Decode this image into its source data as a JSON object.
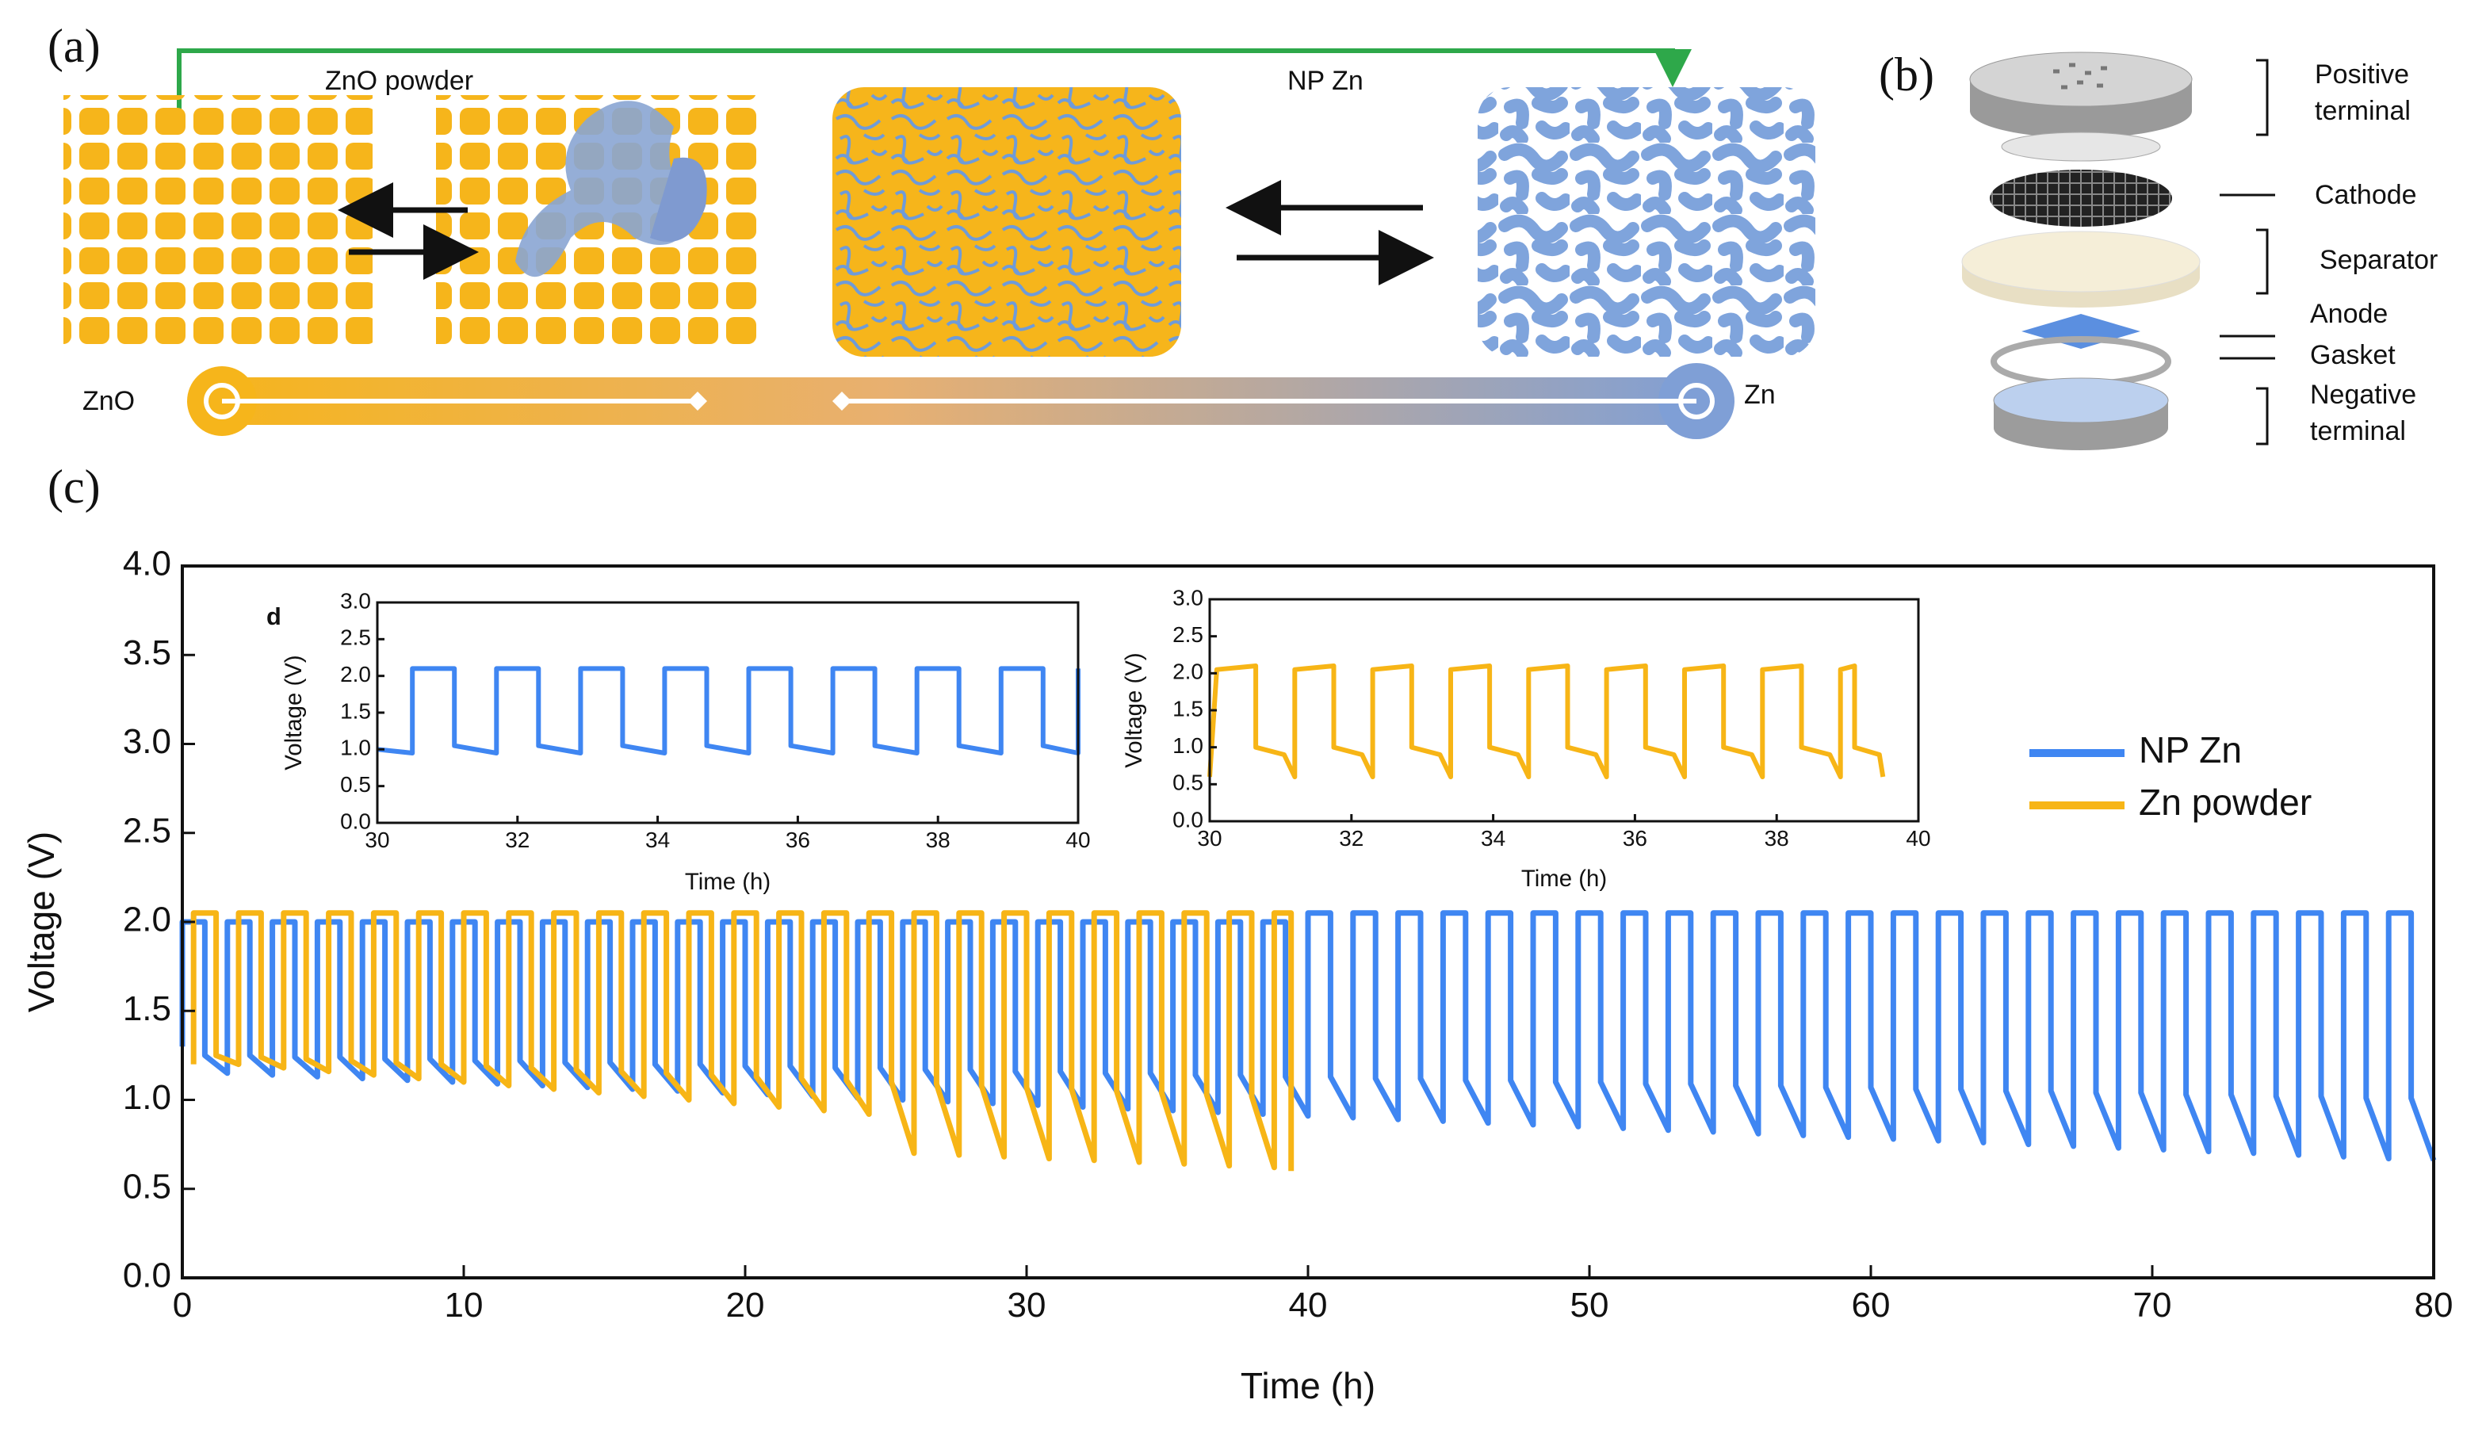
{
  "diagram": {
    "panel_a": "(a)",
    "panel_b": "(b)",
    "panel_c": "(c)",
    "zno_powder": "ZnO powder",
    "np_zn": "NP Zn",
    "zno": "ZnO",
    "zn": "Zn",
    "cell_parts": [
      {
        "label": [
          "Positive",
          "terminal"
        ]
      },
      {
        "label": [
          "Cathode"
        ]
      },
      {
        "label": [
          "Separator"
        ]
      },
      {
        "label": [
          "Anode"
        ]
      },
      {
        "label": [
          "Gasket"
        ]
      },
      {
        "label": [
          "Negative",
          "terminal"
        ]
      }
    ]
  },
  "chart_data": [
    {
      "type": "line",
      "x_label": "Time (h)",
      "y_label": "Voltage (V)",
      "legend": "right",
      "xlim": [
        0,
        80
      ],
      "xticks": [
        0,
        10,
        20,
        30,
        40,
        50,
        60,
        70,
        80
      ],
      "ylim": [
        0,
        4
      ],
      "yticks": [
        {
          "value": 0,
          "label": "0.0"
        },
        0.5,
        {
          "value": 1,
          "label": "1.0"
        },
        1.5,
        {
          "value": 2,
          "label": "2.0"
        },
        2.5,
        {
          "value": 3,
          "label": "3.0"
        },
        3.5,
        {
          "value": 4,
          "label": "4.0"
        }
      ],
      "series": [
        {
          "name": "NP Zn",
          "color": "#3f86f2",
          "x": [
            0,
            0,
            0.8,
            0.8,
            1.6,
            1.6,
            2.4,
            2.4,
            3.2,
            3.2,
            4,
            4,
            4.8,
            4.8,
            5.6,
            5.6,
            6.4,
            6.4,
            7.2,
            7.2,
            8,
            8,
            8.8,
            8.8,
            9.6,
            9.6,
            10.4,
            10.4,
            11.2,
            11.2,
            12,
            12,
            12.8,
            12.8,
            13.6,
            13.6,
            14.4,
            14.4,
            15.2,
            15.2,
            16,
            16,
            16.8,
            16.8,
            17.6,
            17.6,
            18.4,
            18.4,
            19.2,
            19.2,
            20,
            20,
            20.8,
            20.8,
            21.6,
            21.6,
            22.4,
            22.4,
            23.2,
            23.2,
            24,
            24,
            24.8,
            24.8,
            25.6,
            25.6,
            26.4,
            26.4,
            27.2,
            27.2,
            28,
            28,
            28.8,
            28.8,
            29.6,
            29.6,
            30.4,
            30.4,
            31.2,
            31.2,
            32,
            32,
            32.8,
            32.8,
            33.6,
            33.6,
            34.4,
            34.4,
            35.2,
            35.2,
            36,
            36,
            36.8,
            36.8,
            37.6,
            37.6,
            38.4,
            38.4,
            39.2,
            39.2,
            40,
            40,
            40.8,
            40.8,
            41.6,
            41.6,
            42.4,
            42.4,
            43.2,
            43.2,
            44,
            44,
            44.8,
            44.8,
            45.6,
            45.6,
            46.4,
            46.4,
            47.2,
            47.2,
            48,
            48,
            48.8,
            48.8,
            49.6,
            49.6,
            50.4,
            50.4,
            51.2,
            51.2,
            52,
            52,
            52.8,
            52.8,
            53.6,
            53.6,
            54.4,
            54.4,
            55.2,
            55.2,
            56,
            56,
            56.8,
            56.8,
            57.6,
            57.6,
            58.4,
            58.4,
            59.2,
            59.2,
            60,
            60,
            60.8,
            60.8,
            61.6,
            61.6,
            62.4,
            62.4,
            63.2,
            63.2,
            64,
            64,
            64.8,
            64.8,
            65.6,
            65.6,
            66.4,
            66.4,
            67.2,
            67.2,
            68,
            68,
            68.8,
            68.8,
            69.6,
            69.6,
            70.4,
            70.4,
            71.2,
            71.2,
            72,
            72,
            72.8,
            72.8,
            73.6,
            73.6,
            74.4,
            74.4,
            75.2,
            75.2,
            76,
            76,
            76.8,
            76.8,
            77.6,
            77.6,
            78.4,
            78.4,
            79.2,
            79.2,
            80
          ],
          "values": [
            1.3,
            2,
            2,
            1.25,
            1.15,
            2,
            2,
            1.25,
            1.14,
            2,
            2,
            1.24,
            1.13,
            2,
            2,
            1.24,
            1.12,
            2,
            2,
            1.23,
            1.11,
            2,
            2,
            1.23,
            1.1,
            2,
            2,
            1.22,
            1.09,
            2,
            2,
            1.22,
            1.08,
            2,
            2,
            1.21,
            1.07,
            2,
            2,
            1.21,
            1.06,
            2,
            2,
            1.2,
            1.05,
            2,
            2,
            1.2,
            1.04,
            2,
            2,
            1.19,
            1.03,
            2,
            2,
            1.19,
            1.02,
            2,
            2,
            1.18,
            1.01,
            2,
            2,
            1.18,
            1,
            2,
            2,
            1.17,
            0.99,
            2,
            2,
            1.17,
            0.98,
            2,
            2,
            1.16,
            0.97,
            2,
            2,
            1.16,
            0.96,
            2,
            2,
            1.15,
            0.95,
            2,
            2,
            1.15,
            0.94,
            2,
            2,
            1.14,
            0.93,
            2,
            2,
            1.14,
            0.92,
            2,
            2,
            1.13,
            0.91,
            2.05,
            2.05,
            1.13,
            0.9,
            2.05,
            2.05,
            1.12,
            0.89,
            2.05,
            2.05,
            1.12,
            0.88,
            2.05,
            2.05,
            1.11,
            0.87,
            2.05,
            2.05,
            1.11,
            0.86,
            2.05,
            2.05,
            1.1,
            0.85,
            2.05,
            2.05,
            1.1,
            0.84,
            2.05,
            2.05,
            1.09,
            0.83,
            2.05,
            2.05,
            1.09,
            0.82,
            2.05,
            2.05,
            1.08,
            0.81,
            2.05,
            2.05,
            1.08,
            0.8,
            2.05,
            2.05,
            1.07,
            0.79,
            2.05,
            2.05,
            1.07,
            0.78,
            2.05,
            2.05,
            1.06,
            0.77,
            2.05,
            2.05,
            1.06,
            0.76,
            2.05,
            2.05,
            1.05,
            0.75,
            2.05,
            2.05,
            1.05,
            0.74,
            2.05,
            2.05,
            1.04,
            0.73,
            2.05,
            2.05,
            1.04,
            0.72,
            2.05,
            2.05,
            1.03,
            0.71,
            2.05,
            2.05,
            1.03,
            0.7,
            2.05,
            2.05,
            1.02,
            0.69,
            2.05,
            2.05,
            1.02,
            0.68,
            2.05,
            2.05,
            1.01,
            0.67,
            2.05,
            2.05,
            1.01,
            0.66
          ]
        },
        {
          "name": "Zn powder",
          "color": "#f7b516",
          "x": [
            0.4,
            0.4,
            1.2,
            1.2,
            2,
            2,
            2.8,
            2.8,
            3.6,
            3.6,
            4.4,
            4.4,
            5.2,
            5.2,
            6,
            6,
            6.8,
            6.8,
            7.6,
            7.6,
            8.4,
            8.4,
            9.2,
            9.2,
            10,
            10,
            10.8,
            10.8,
            11.6,
            11.6,
            12.4,
            12.4,
            13.2,
            13.2,
            14,
            14,
            14.8,
            14.8,
            15.6,
            15.6,
            16.4,
            16.4,
            17.2,
            17.2,
            18,
            18,
            18.8,
            18.8,
            19.6,
            19.6,
            20.4,
            20.4,
            21.2,
            21.2,
            22,
            22,
            22.8,
            22.8,
            23.6,
            23.6,
            24.4,
            24.4,
            25.2,
            25.2,
            26,
            26,
            26.8,
            26.8,
            27.6,
            27.6,
            28.4,
            28.4,
            29.2,
            29.2,
            30,
            30,
            30.8,
            30.8,
            31.6,
            31.6,
            32.4,
            32.4,
            33.2,
            33.2,
            34,
            34,
            34.8,
            34.8,
            35.6,
            35.6,
            36.4,
            36.4,
            37.2,
            37.2,
            38,
            38,
            38.8,
            38.8,
            39.4,
            39.4
          ],
          "values": [
            1.2,
            2.05,
            2.05,
            1.25,
            1.2,
            2.05,
            2.05,
            1.24,
            1.18,
            2.05,
            2.05,
            1.23,
            1.16,
            2.05,
            2.05,
            1.22,
            1.14,
            2.05,
            2.05,
            1.21,
            1.12,
            2.05,
            2.05,
            1.2,
            1.1,
            2.05,
            2.05,
            1.19,
            1.08,
            2.05,
            2.05,
            1.18,
            1.06,
            2.05,
            2.05,
            1.17,
            1.04,
            2.05,
            2.05,
            1.16,
            1.02,
            2.05,
            2.05,
            1.15,
            1,
            2.05,
            2.05,
            1.14,
            0.98,
            2.05,
            2.05,
            1.13,
            0.96,
            2.05,
            2.05,
            1.12,
            0.94,
            2.05,
            2.05,
            1.11,
            0.92,
            2.05,
            2.05,
            1.1,
            0.7,
            2.05,
            2.05,
            1.09,
            0.69,
            2.05,
            2.05,
            1.08,
            0.68,
            2.05,
            2.05,
            1.07,
            0.67,
            2.05,
            2.05,
            1.06,
            0.66,
            2.05,
            2.05,
            1.05,
            0.65,
            2.05,
            2.05,
            1.04,
            0.64,
            2.05,
            2.05,
            1.03,
            0.63,
            2.05,
            2.05,
            1.02,
            0.62,
            2.05,
            2.05,
            0.6
          ]
        }
      ]
    },
    {
      "type": "line",
      "label": "d",
      "x_label": "Time (h)",
      "y_label": "Voltage (V)",
      "xlim": [
        30,
        40
      ],
      "xticks": [
        30,
        32,
        34,
        36,
        38,
        40
      ],
      "ylim": [
        0,
        3
      ],
      "yticks": [
        {
          "value": 0,
          "label": "0.0"
        },
        0.5,
        {
          "value": 1,
          "label": "1.0"
        },
        1.5,
        {
          "value": 2,
          "label": "2.0"
        },
        2.5,
        {
          "value": 3,
          "label": "3.0"
        }
      ],
      "series": [
        {
          "color": "#3f86f2",
          "x": [
            30,
            30.5,
            30.5,
            31.1,
            31.1,
            31.7,
            31.7,
            32.3,
            32.3,
            32.9,
            32.9,
            33.5,
            33.5,
            34.1,
            34.1,
            34.7,
            34.7,
            35.3,
            35.3,
            35.9,
            35.9,
            36.5,
            36.5,
            37.1,
            37.1,
            37.7,
            37.7,
            38.3,
            38.3,
            38.9,
            38.9,
            39.5,
            39.5,
            40,
            40
          ],
          "values": [
            1,
            0.95,
            2.1,
            2.1,
            1.05,
            0.95,
            2.1,
            2.1,
            1.05,
            0.95,
            2.1,
            2.1,
            1.05,
            0.95,
            2.1,
            2.1,
            1.05,
            0.95,
            2.1,
            2.1,
            1.05,
            0.95,
            2.1,
            2.1,
            1.05,
            0.95,
            2.1,
            2.1,
            1.05,
            0.95,
            2.1,
            2.1,
            1.05,
            0.95,
            2.1
          ]
        }
      ]
    },
    {
      "type": "line",
      "x_label": "Time (h)",
      "y_label": "Voltage (V)",
      "xlim": [
        30,
        40
      ],
      "xticks": [
        30,
        32,
        34,
        36,
        38,
        40
      ],
      "ylim": [
        0,
        3
      ],
      "yticks": [
        {
          "value": 0,
          "label": "0.0"
        },
        0.5,
        {
          "value": 1,
          "label": "1.0"
        },
        1.5,
        {
          "value": 2,
          "label": "2.0"
        },
        2.5,
        {
          "value": 3,
          "label": "3.0"
        }
      ],
      "series": [
        {
          "color": "#f7b516",
          "x": [
            30,
            30.1,
            30.65,
            30.65,
            31.05,
            31.2,
            31.2,
            31.75,
            31.75,
            32.15,
            32.3,
            32.3,
            32.85,
            32.85,
            33.25,
            33.4,
            33.4,
            33.95,
            33.95,
            34.35,
            34.5,
            34.5,
            35.05,
            35.05,
            35.45,
            35.6,
            35.6,
            36.15,
            36.15,
            36.55,
            36.7,
            36.7,
            37.25,
            37.25,
            37.65,
            37.8,
            37.8,
            38.35,
            38.35,
            38.75,
            38.9,
            38.9,
            39.1,
            39.1,
            39.45,
            39.5
          ],
          "values": [
            0.6,
            2.05,
            2.1,
            1,
            0.9,
            0.6,
            2.05,
            2.1,
            1,
            0.9,
            0.6,
            2.05,
            2.1,
            1,
            0.9,
            0.6,
            2.05,
            2.1,
            1,
            0.9,
            0.6,
            2.05,
            2.1,
            1,
            0.9,
            0.6,
            2.05,
            2.1,
            1,
            0.9,
            0.6,
            2.05,
            2.1,
            1,
            0.9,
            0.6,
            2.05,
            2.1,
            1,
            0.9,
            0.6,
            2.05,
            2.1,
            1,
            0.9,
            0.6
          ]
        }
      ]
    }
  ]
}
